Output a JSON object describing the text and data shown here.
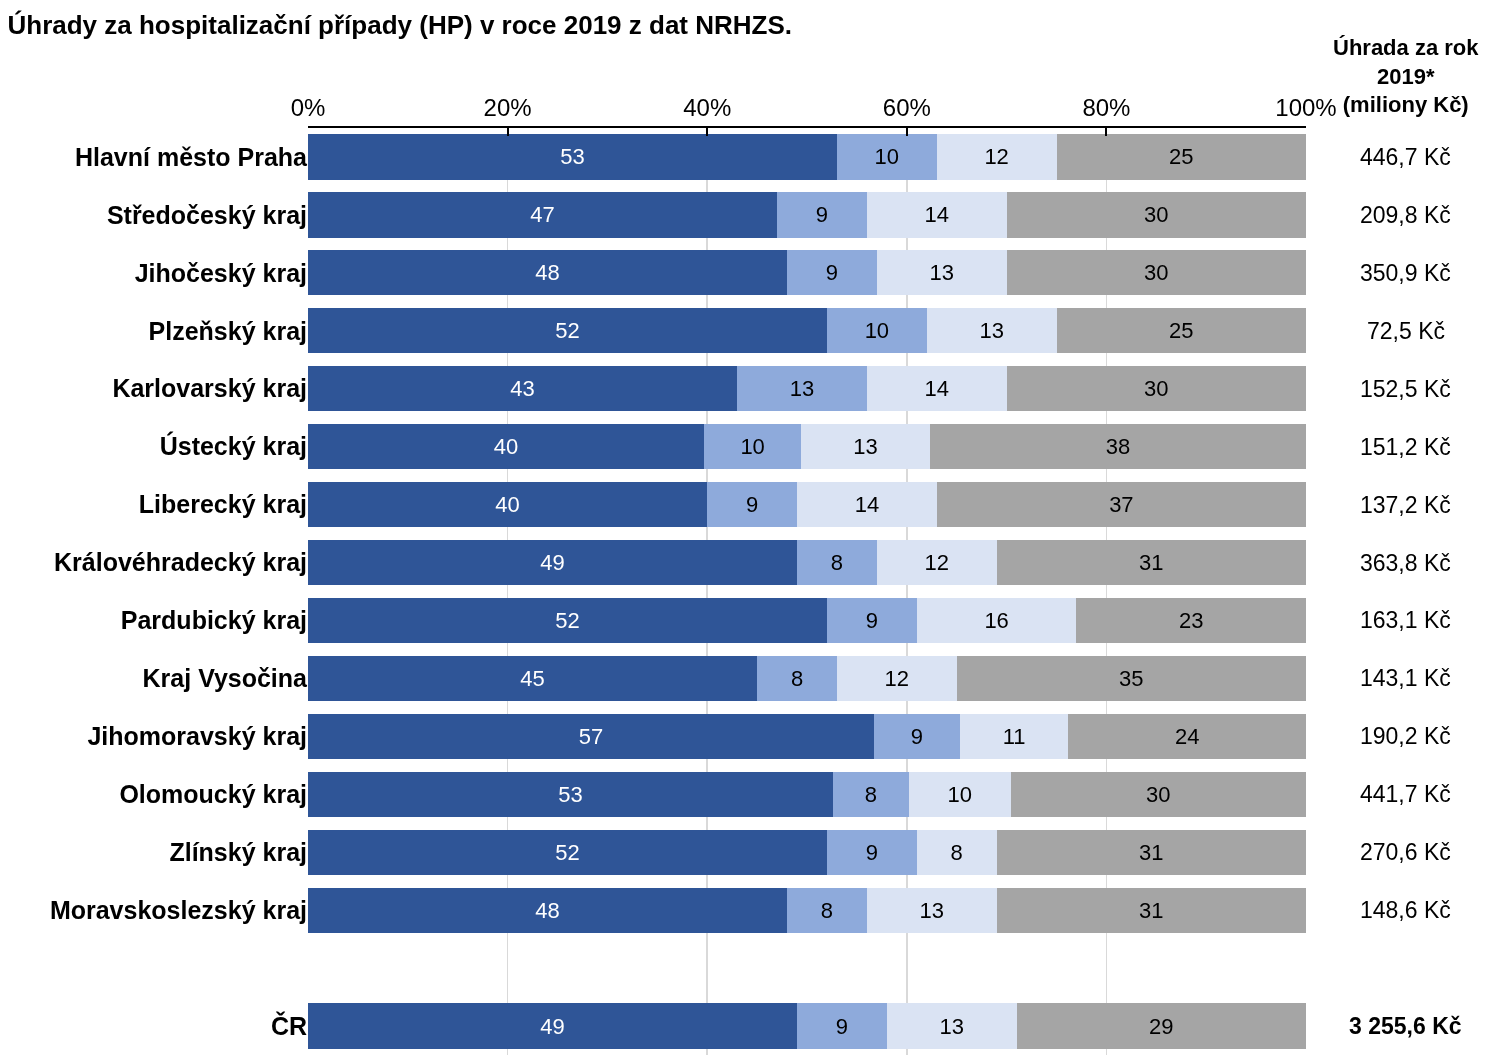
{
  "chart_data": {
    "type": "bar",
    "orientation": "horizontal",
    "stacked": true,
    "title": "Úhrady za hospitalizační případy (HP) v roce 2019 z dat NRHZS.",
    "categories": [
      "Hlavní město Praha",
      "Středočeský kraj",
      "Jihočeský kraj",
      "Plzeňský kraj",
      "Karlovarský kraj",
      "Ústecký kraj",
      "Liberecký kraj",
      "Královéhradecký kraj",
      "Pardubický kraj",
      "Kraj Vysočina",
      "Jihomoravský kraj",
      "Olomoucký kraj",
      "Zlínský kraj",
      "Moravskoslezský kraj",
      null,
      "ČR"
    ],
    "series": [
      {
        "color": "#2f5597",
        "values": [
          53,
          47,
          48,
          52,
          43,
          39.7,
          40,
          49,
          52,
          45,
          56.7,
          52.6,
          52,
          48,
          null,
          49
        ],
        "value_labels": [
          "53",
          "47",
          "48",
          "52",
          "43",
          "40",
          "40",
          "49",
          "52",
          "45",
          "57",
          "53",
          "52",
          "48",
          null,
          "49"
        ]
      },
      {
        "color": "#8eaadb",
        "values": [
          10,
          9,
          9,
          10,
          13,
          9.7,
          9,
          8,
          9,
          8,
          8.6,
          7.6,
          9,
          8,
          null,
          9
        ],
        "value_labels": [
          "10",
          "9",
          "9",
          "10",
          "13",
          "10",
          "9",
          "8",
          "9",
          "8",
          "9",
          "8",
          "9",
          "8",
          null,
          "9"
        ]
      },
      {
        "color": "#dae3f3",
        "values": [
          12,
          14,
          13,
          13,
          14,
          12.9,
          14,
          12,
          16,
          12,
          10.9,
          10.2,
          8,
          13,
          null,
          13
        ],
        "value_labels": [
          "12",
          "14",
          "13",
          "13",
          "14",
          "13",
          "14",
          "12",
          "16",
          "12",
          "11",
          "10",
          "8",
          "13",
          null,
          "13"
        ]
      },
      {
        "color": "#a5a5a5",
        "values": [
          25,
          30,
          30,
          25,
          30,
          37.7,
          37,
          31,
          23,
          35,
          23.8,
          29.6,
          31,
          31,
          null,
          29
        ],
        "value_labels": [
          "25",
          "30",
          "30",
          "25",
          "30",
          "38",
          "37",
          "31",
          "23",
          "35",
          "24",
          "30",
          "31",
          "31",
          null,
          "29"
        ]
      }
    ],
    "xlim": [
      0,
      100
    ],
    "xticks": [
      {
        "value": 0,
        "label": "0%"
      },
      {
        "value": 20,
        "label": "20%"
      },
      {
        "value": 40,
        "label": "40%"
      },
      {
        "value": 60,
        "label": "60%"
      },
      {
        "value": 80,
        "label": "80%"
      },
      {
        "value": 100,
        "label": "100%"
      }
    ],
    "grid": "x",
    "annotations": [
      "Úhrada za rok 2019* (miliony Kč)",
      "446,7 Kč",
      "209,8 Kč",
      "350,9 Kč",
      "72,5 Kč",
      "152,5 Kč",
      "151,2 Kč",
      "137,2 Kč",
      "363,8 Kč",
      "163,1 Kč",
      "143,1 Kč",
      "190,2 Kč",
      "441,7 Kč",
      "270,6 Kč",
      "148,6 Kč",
      "3 255,6 Kč"
    ]
  }
}
